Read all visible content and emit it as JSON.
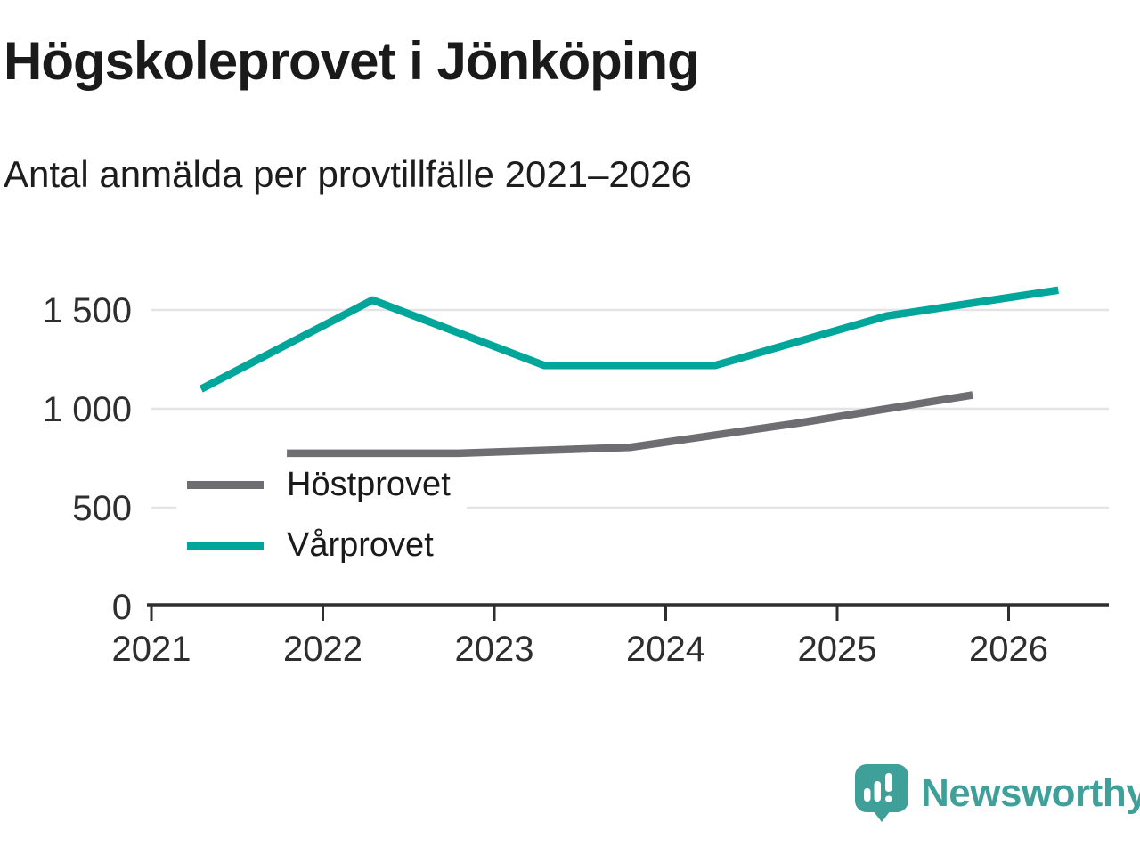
{
  "header": {
    "title": "Högskoleprovet i Jönköping",
    "subtitle": "Antal anmälda per provtillfälle 2021–2026"
  },
  "chart_data": {
    "type": "line",
    "title": "Högskoleprovet i Jönköping",
    "subtitle": "Antal anmälda per provtillfälle 2021–2026",
    "xlabel": "",
    "ylabel": "",
    "xlim": [
      2021.0,
      2026.58
    ],
    "ylim": [
      0,
      1760
    ],
    "grid": "horizontal",
    "grid_color": "#e4e4e4",
    "axis_color": "#2e2e2e",
    "x_ticks": [
      "2021",
      "2022",
      "2023",
      "2024",
      "2025",
      "2026"
    ],
    "x_tick_values": [
      2021,
      2022,
      2023,
      2024,
      2025,
      2026
    ],
    "y_tick_labels": [
      "0",
      "500",
      "1 000",
      "1 500"
    ],
    "y_tick_values": [
      0,
      500,
      1000,
      1500
    ],
    "legend_position": "inside-bottom-left",
    "series": [
      {
        "name": "Höstprovet",
        "color": "#6e6e72",
        "x": [
          2021.79,
          2022.79,
          2023.79,
          2024.79,
          2025.79
        ],
        "values": [
          775,
          775,
          805,
          930,
          1070
        ]
      },
      {
        "name": "Vårprovet",
        "color": "#00a69a",
        "x": [
          2021.29,
          2022.29,
          2023.29,
          2024.29,
          2025.29,
          2026.29
        ],
        "values": [
          1100,
          1550,
          1220,
          1220,
          1470,
          1600
        ]
      }
    ]
  },
  "footer": {
    "brand": "Newsworthy",
    "brand_color": "#3fa099"
  }
}
